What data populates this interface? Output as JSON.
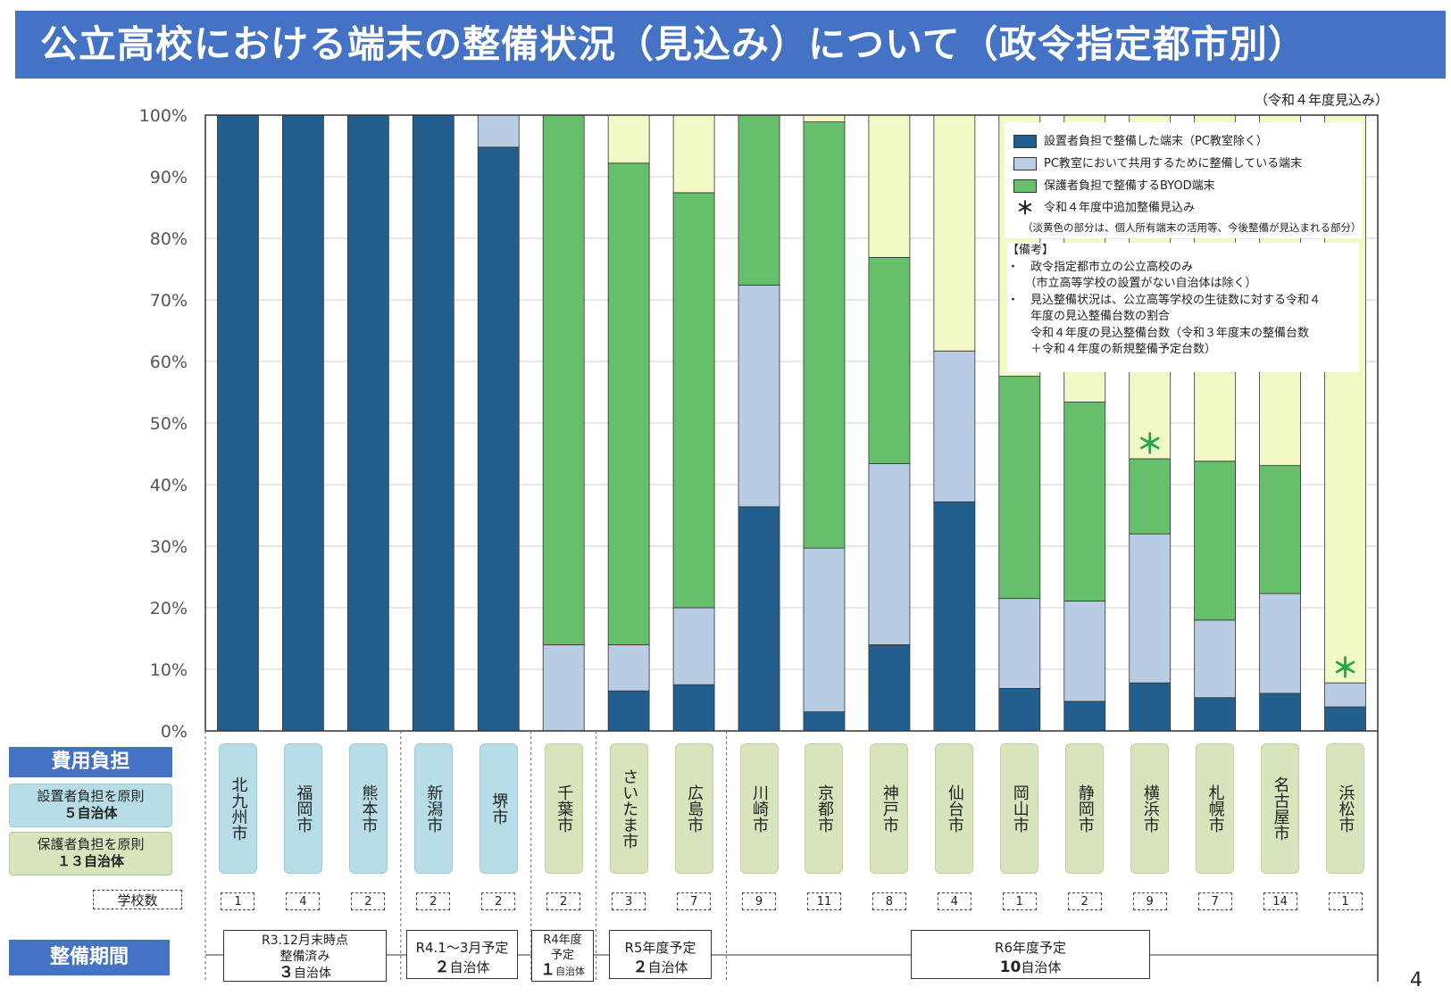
{
  "title": "公立高校における端末の整備状況（見込み）について（政令指定都市別）",
  "subnote": "（令和４年度見込み）",
  "page_number": "4",
  "colors": {
    "school": "#225e8e",
    "pc_room": "#b8cce4",
    "byod": "#66bf6a",
    "remaining": "#f2f8c6",
    "title_bg": "#4472c4"
  },
  "legend": {
    "items": [
      "設置者負担で整備した端末（PC教室除く）",
      "PC教室において共用するために整備している端末",
      "保護者負担で整備するBYOD端末"
    ],
    "asterisk_symbol": "＊",
    "asterisk_label": "令和４年度中追加整備見込み",
    "note": "（淡黄色の部分は、個人所有端末の活用等、今後整備が見込まれる部分）"
  },
  "remarks": {
    "heading": "【備考】",
    "lines": [
      "・　政令指定都市立の公立高校のみ",
      "　　（市立高等学校の設置がない自治体は除く）",
      "・　見込整備状況は、公立高等学校の生徒数に対する令和４",
      "　　年度の見込整備台数の割合",
      "　　令和４年度の見込整備台数（令和３年度末の整備台数",
      "　　＋令和４年度の新規整備予定台数）"
    ]
  },
  "cost_panel": {
    "header": "費用負担",
    "school_burden_line1": "設置者負担を原則",
    "school_burden_line2": "５自治体",
    "parent_burden_line1": "保護者負担を原則",
    "parent_burden_line2": "１３自治体"
  },
  "schools_label": "学校数",
  "period_panel": {
    "header": "整備期間",
    "groups": [
      {
        "line1": "R3.12月末時点",
        "line2": "整備済み",
        "count": "３",
        "unit": "自治体"
      },
      {
        "line1": "R4.1～3月予定",
        "line2": "",
        "count": "２",
        "unit": "自治体"
      },
      {
        "line1": "R4年度",
        "line2": "予定",
        "count": "１",
        "unit": "自治体"
      },
      {
        "line1": "R5年度予定",
        "line2": "",
        "count": "２",
        "unit": "自治体"
      },
      {
        "line1": "R6年度予定",
        "line2": "",
        "count": "10",
        "unit": "自治体"
      }
    ]
  },
  "chart_data": {
    "type": "bar",
    "stacked": true,
    "title": "公立高校における端末の整備状況（見込み）について（政令指定都市別）",
    "ylabel": "",
    "xlabel": "",
    "ylim": [
      0,
      100
    ],
    "yticks": [
      "0%",
      "10%",
      "20%",
      "30%",
      "40%",
      "50%",
      "60%",
      "70%",
      "80%",
      "90%",
      "100%"
    ],
    "categories": [
      "北九州市",
      "福岡市",
      "熊本市",
      "新潟市",
      "堺市",
      "千葉市",
      "さいたま市",
      "広島市",
      "川崎市",
      "京都市",
      "神戸市",
      "仙台市",
      "岡山市",
      "静岡市",
      "横浜市",
      "札幌市",
      "名古屋市",
      "浜松市"
    ],
    "cost_group": [
      "設置者",
      "設置者",
      "設置者",
      "設置者",
      "設置者",
      "保護者",
      "保護者",
      "保護者",
      "保護者",
      "保護者",
      "保護者",
      "保護者",
      "保護者",
      "保護者",
      "保護者",
      "保護者",
      "保護者",
      "保護者"
    ],
    "schools": [
      "1",
      "4",
      "2",
      "2",
      "2",
      "2",
      "3",
      "7",
      "9",
      "11",
      "8",
      "4",
      "1",
      "2",
      "9",
      "7",
      "14",
      "1"
    ],
    "asterisk": [
      false,
      false,
      false,
      false,
      false,
      false,
      false,
      false,
      false,
      false,
      false,
      false,
      false,
      false,
      true,
      false,
      false,
      true
    ],
    "series": [
      {
        "name": "設置者負担で整備した端末（PC教室除く）",
        "values": [
          100,
          100,
          100,
          100,
          94.8,
          0,
          6.5,
          7.5,
          36.4,
          3.1,
          14.0,
          37.2,
          6.9,
          4.8,
          7.8,
          5.4,
          6.1,
          3.9
        ]
      },
      {
        "name": "PC教室において共用するために整備している端末",
        "values": [
          0,
          0,
          0,
          0,
          5.2,
          14.0,
          7.5,
          12.5,
          36.0,
          26.6,
          29.4,
          24.5,
          14.6,
          16.3,
          24.2,
          12.6,
          16.2,
          3.9
        ]
      },
      {
        "name": "保護者負担で整備するBYOD端末",
        "values": [
          0,
          0,
          0,
          0,
          0,
          86.0,
          78.2,
          67.4,
          27.6,
          69.2,
          33.5,
          0,
          36.1,
          32.3,
          12.2,
          25.8,
          20.8,
          0
        ]
      },
      {
        "name": "今後整備が見込まれる部分（淡黄色）",
        "values": [
          0,
          0,
          0,
          0,
          0,
          0,
          7.8,
          12.6,
          0,
          1.1,
          23.1,
          38.3,
          42.4,
          46.6,
          55.8,
          56.2,
          56.9,
          92.2
        ]
      }
    ]
  }
}
